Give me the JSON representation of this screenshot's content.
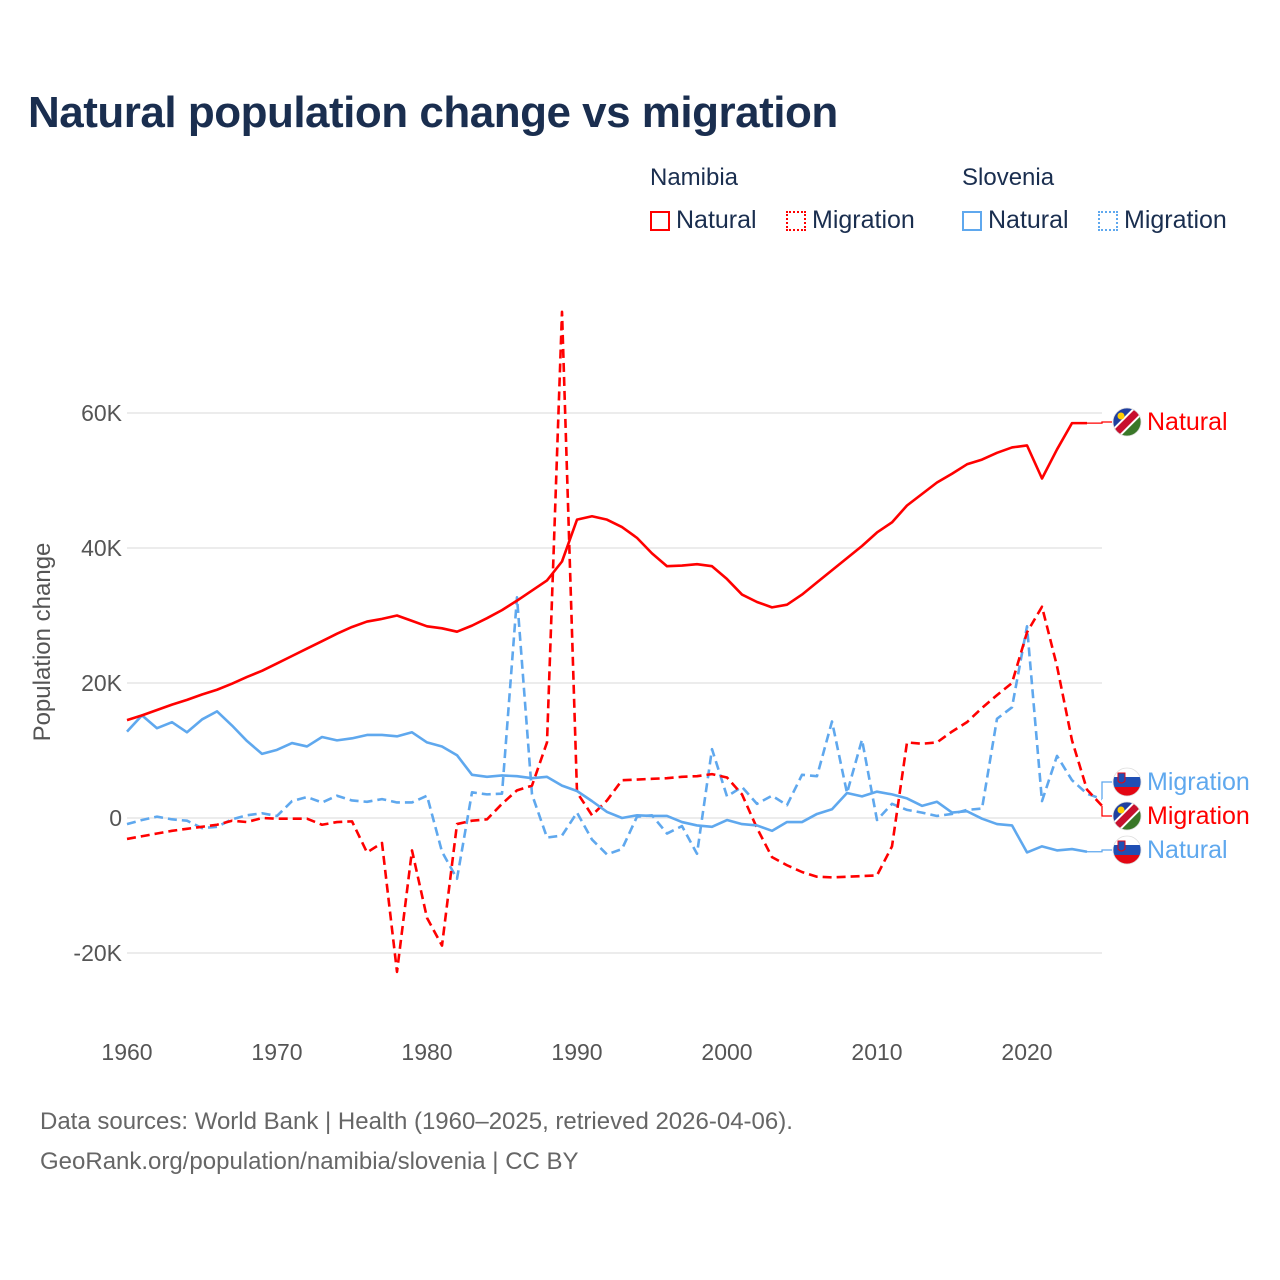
{
  "chart_data": {
    "type": "line",
    "title": "Natural population change vs migration",
    "ylabel": "Population change",
    "xlabel": "",
    "ylim": [
      -30000,
      80000
    ],
    "xlim": [
      1960,
      2025
    ],
    "grid": true,
    "x_ticks": [
      "1960",
      "1970",
      "1980",
      "1990",
      "2000",
      "2010",
      "2020"
    ],
    "y_ticks": [
      {
        "value": -20000,
        "label": "-20K"
      },
      {
        "value": 0,
        "label": "0"
      },
      {
        "value": 20000,
        "label": "20K"
      },
      {
        "value": 40000,
        "label": "40K"
      },
      {
        "value": 60000,
        "label": "60K"
      }
    ],
    "legend": {
      "placement": "top-right",
      "groups": [
        {
          "name": "Namibia",
          "items": [
            "Natural",
            "Migration"
          ]
        },
        {
          "name": "Slovenia",
          "items": [
            "Natural",
            "Migration"
          ]
        }
      ]
    },
    "series": [
      {
        "name": "Namibia Natural",
        "country": "Namibia",
        "kind": "Natural",
        "color": "#ff0000",
        "dash": false,
        "end_label": "Natural",
        "start_year": 1960,
        "values": [
          14.5,
          15.2,
          16,
          16.8,
          17.5,
          18.3,
          19,
          19.9,
          20.9,
          21.8,
          22.9,
          24,
          25.1,
          26.2,
          27.3,
          28.3,
          29.1,
          29.5,
          30,
          29.2,
          28.4,
          28.1,
          27.6,
          28.5,
          29.6,
          30.8,
          32.2,
          33.7,
          35.2,
          38,
          44.2,
          44.7,
          44.2,
          43.1,
          41.5,
          39.2,
          37.3,
          37.4,
          37.6,
          37.3,
          35.4,
          33.1,
          32,
          31.2,
          31.6,
          33.1,
          34.9,
          36.7,
          38.5,
          40.3,
          42.3,
          43.8,
          46.3,
          48,
          49.7,
          51,
          52.4,
          53.1,
          54.1,
          54.9,
          55.2,
          50.3,
          54.6,
          58.5,
          58.5
        ]
      },
      {
        "name": "Namibia Migration",
        "country": "Namibia",
        "kind": "Migration",
        "color": "#ff0000",
        "dash": true,
        "end_label": "Migration",
        "start_year": 1960,
        "values": [
          -3.1,
          -2.7,
          -2.3,
          -1.9,
          -1.6,
          -1.3,
          -1,
          -0.4,
          -0.6,
          0,
          -0.1,
          -0.1,
          -0.1,
          -1,
          -0.6,
          -0.5,
          -5.1,
          -3.7,
          -22.8,
          -4.8,
          -14.8,
          -18.9,
          -0.9,
          -0.4,
          -0.2,
          2.1,
          4.1,
          4.8,
          11.2,
          75,
          3.8,
          0.4,
          2.6,
          5.6,
          5.7,
          5.8,
          5.9,
          6.1,
          6.2,
          6.5,
          6,
          3.5,
          -1.5,
          -5.8,
          -7,
          -8,
          -8.7,
          -8.8,
          -8.7,
          -8.6,
          -8.5,
          -4.2,
          11.2,
          11,
          11.2,
          12.8,
          14.2,
          16.3,
          18.2,
          20,
          27.5,
          31.3,
          22.5,
          11.5,
          4.2,
          1.8
        ]
      },
      {
        "name": "Slovenia Natural",
        "country": "Slovenia",
        "kind": "Natural",
        "color": "#5fa8ee",
        "dash": false,
        "end_label": "Natural",
        "start_year": 1960,
        "values": [
          12.8,
          15.2,
          13.3,
          14.2,
          12.7,
          14.6,
          15.8,
          13.7,
          11.4,
          9.5,
          10.1,
          11.1,
          10.6,
          12,
          11.5,
          11.8,
          12.3,
          12.3,
          12.1,
          12.7,
          11.2,
          10.6,
          9.3,
          6.4,
          6.1,
          6.3,
          6.2,
          5.9,
          6.1,
          4.8,
          4,
          2.5,
          0.9,
          0,
          0.4,
          0.3,
          0.3,
          -0.6,
          -1.1,
          -1.3,
          -0.3,
          -0.9,
          -1.1,
          -1.9,
          -0.6,
          -0.6,
          0.6,
          1.3,
          3.7,
          3.2,
          3.9,
          3.5,
          2.9,
          1.8,
          2.4,
          0.8,
          1,
          -0.1,
          -0.9,
          -1.1,
          -5.1,
          -4.2,
          -4.8,
          -4.6,
          -5
        ]
      },
      {
        "name": "Slovenia Migration",
        "country": "Slovenia",
        "kind": "Migration",
        "color": "#5fa8ee",
        "dash": true,
        "end_label": "Migration",
        "start_year": 1960,
        "values": [
          -0.9,
          -0.3,
          0.2,
          -0.2,
          -0.4,
          -1.5,
          -1.3,
          -0.2,
          0.4,
          0.7,
          0.3,
          2.5,
          3.1,
          2.3,
          3.3,
          2.6,
          2.4,
          2.8,
          2.3,
          2.3,
          3.3,
          -5,
          -9,
          3.8,
          3.5,
          3.6,
          32.7,
          3.5,
          -2.9,
          -2.6,
          0.8,
          -3.2,
          -5.4,
          -4.6,
          0.2,
          0.4,
          -2.3,
          -1.2,
          -5.3,
          10.2,
          3.2,
          4.6,
          2.1,
          3.3,
          1.9,
          6.4,
          6.2,
          14.3,
          3.7,
          11.6,
          -0.3,
          2.1,
          1.2,
          0.8,
          0.3,
          0.6,
          1.2,
          1.4,
          14.7,
          16.4,
          28.4,
          2.5,
          9.2,
          5.6,
          3.6,
          2.8
        ]
      }
    ],
    "value_unit": "thousands"
  },
  "footer": {
    "line1": "Data sources: World Bank | Health (1960–2025, retrieved 2026-04-06).",
    "line2": "GeoRank.org/population/namibia/slovenia | CC BY"
  }
}
